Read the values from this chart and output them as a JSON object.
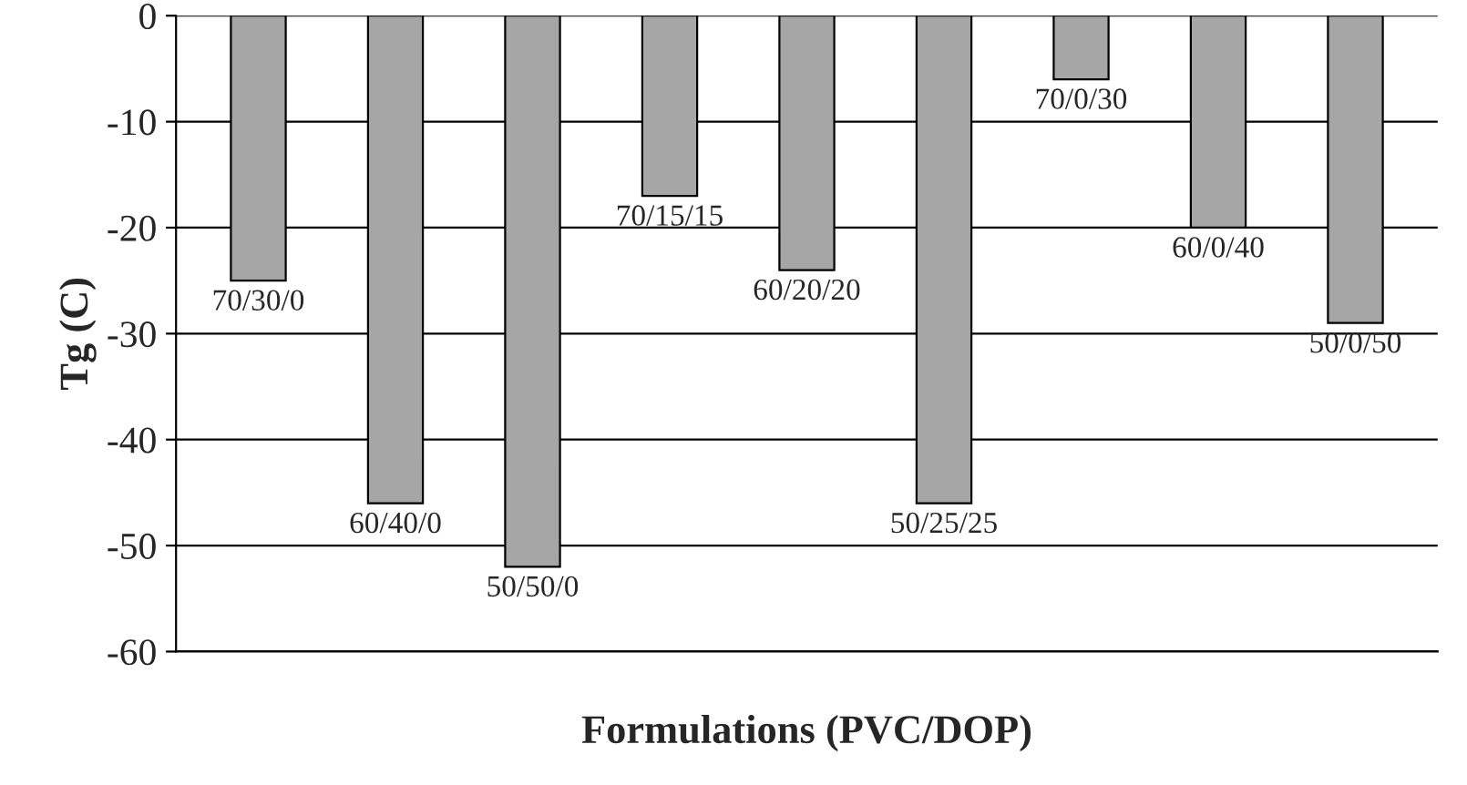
{
  "chart_data": {
    "type": "bar",
    "xlabel": "Formulations (PVC/DOP)",
    "ylabel": "Tg (C)",
    "categories": [
      "70/30/0",
      "60/40/0",
      "50/50/0",
      "70/15/15",
      "60/20/20",
      "50/25/25",
      "70/0/30",
      "60/0/40",
      "50/0/50"
    ],
    "values": [
      -25,
      -46,
      -52,
      -17,
      -24,
      -46,
      -6,
      -20,
      -29
    ],
    "color": "#a6a6a6",
    "ylim": [
      -60,
      0
    ],
    "yticks": [
      -60,
      -50,
      -40,
      -30,
      -20,
      -10,
      0
    ],
    "grid": "y"
  }
}
